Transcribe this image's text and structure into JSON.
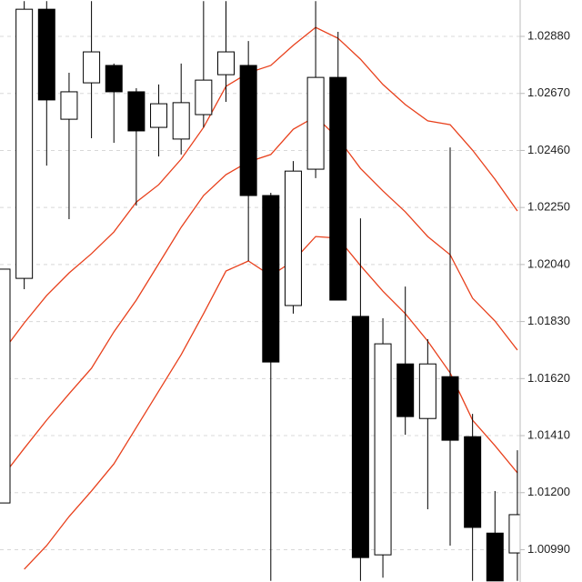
{
  "chart_data": {
    "type": "candlestick",
    "open": [
      1.01162,
      1.01989,
      1.0298,
      1.02575,
      1.02709,
      1.02773,
      1.02676,
      1.02545,
      1.02502,
      1.02592,
      1.02739,
      1.02773,
      1.02294,
      1.01889,
      1.02391,
      1.02729,
      1.01849,
      1.00971,
      1.01674,
      1.01473,
      1.01627,
      1.01406,
      1.01051,
      1.00978
    ],
    "high": [
      1.02023,
      1.0301,
      1.0301,
      1.02746,
      1.0301,
      1.0278,
      1.02689,
      1.02703,
      1.0278,
      1.0301,
      1.0301,
      1.02863,
      1.02304,
      1.02421,
      1.0301,
      1.02897,
      1.0221,
      1.01842,
      1.01959,
      1.01765,
      1.02471,
      1.0149,
      1.01206,
      1.01356
    ],
    "low": [
      1.01162,
      1.01949,
      1.02404,
      1.02207,
      1.02505,
      1.02488,
      1.02257,
      1.02438,
      1.02445,
      1.02545,
      1.02639,
      1.02053,
      1.00875,
      1.01859,
      1.02358,
      1.01909,
      1.00875,
      1.00887,
      1.01413,
      1.01139,
      1.01005,
      1.00875,
      1.00875,
      1.00875
    ],
    "close": [
      1.02023,
      1.0298,
      1.02646,
      1.02676,
      1.02823,
      1.02676,
      1.02532,
      1.02632,
      1.02636,
      1.02719,
      1.02823,
      1.02294,
      1.01681,
      1.02384,
      1.02729,
      1.01909,
      1.00961,
      1.01748,
      1.0148,
      1.01674,
      1.01393,
      1.01072,
      1.00875,
      1.01119
    ],
    "up_color": "#ffffff",
    "down_color": "#000000",
    "edge_color": "#000000",
    "bands": [
      {
        "color": "#e8401c",
        "values": [
          1.01715,
          1.01825,
          1.01926,
          1.02009,
          1.0208,
          1.0216,
          1.0227,
          1.02334,
          1.02428,
          1.02545,
          1.02696,
          1.02746,
          1.02773,
          1.02847,
          1.02913,
          1.02873,
          1.02796,
          1.02703,
          1.02629,
          1.02569,
          1.02555,
          1.02461,
          1.02354,
          1.02237
        ]
      },
      {
        "color": "#e8401c",
        "values": [
          1.01256,
          1.01363,
          1.01467,
          1.01564,
          1.01658,
          1.01792,
          1.01909,
          1.02043,
          1.02177,
          1.02294,
          1.02371,
          1.02418,
          1.02445,
          1.02538,
          1.02585,
          1.02505,
          1.02394,
          1.02311,
          1.02234,
          1.02143,
          1.02076,
          1.01916,
          1.01832,
          1.01725
        ]
      },
      {
        "color": "#e8401c",
        "values": [
          null,
          1.00918,
          1.01005,
          1.01112,
          1.01206,
          1.01306,
          1.0144,
          1.01574,
          1.01708,
          1.01859,
          1.02016,
          1.02053,
          1.01999,
          1.02053,
          1.02143,
          1.02137,
          1.02036,
          1.01942,
          1.01859,
          1.01758,
          1.01641,
          1.01467,
          1.01373,
          1.01273
        ]
      }
    ],
    "ylim": [
      1.00871,
      1.03014
    ],
    "yticks": [
      {
        "value": 1.0288,
        "label": "1.02880"
      },
      {
        "value": 1.0267,
        "label": "1.02670"
      },
      {
        "value": 1.0246,
        "label": "1.02460"
      },
      {
        "value": 1.0225,
        "label": "1.02250"
      },
      {
        "value": 1.0204,
        "label": "1.02040"
      },
      {
        "value": 1.0183,
        "label": "1.01830"
      },
      {
        "value": 1.0162,
        "label": "1.01620"
      },
      {
        "value": 1.0141,
        "label": "1.01410"
      },
      {
        "value": 1.012,
        "label": "1.01200"
      },
      {
        "value": 1.0099,
        "label": "1.00990"
      }
    ],
    "grid": true
  }
}
